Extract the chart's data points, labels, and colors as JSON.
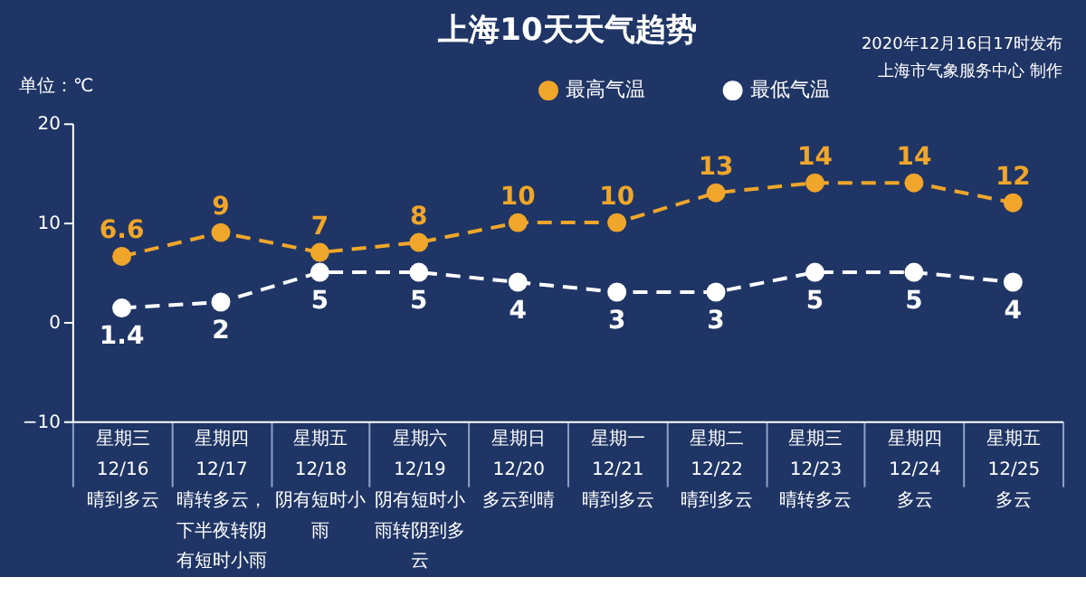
{
  "chart_data": {
    "type": "line",
    "title": "上海10天天气趋势",
    "ylabel": "单位：℃",
    "annotations": [
      "2020年12月16日17时发布",
      "上海市气象服务中心 制作"
    ],
    "categories": [
      "星期三\n12/16\n晴到多云",
      "星期四\n12/17\n晴转多云，下半夜转阴有短时小雨",
      "星期五\n12/18\n阴有短时小雨",
      "星期六\n12/19\n阴有短时小雨转阴到多云",
      "星期日\n12/20\n多云到晴",
      "星期一\n12/21\n晴到多云",
      "星期二\n12/22\n晴到多云",
      "星期三\n12/23\n晴转多云",
      "星期四\n12/24\n多云",
      "星期五\n12/25\n多云"
    ],
    "series": [
      {
        "name": "最高气温",
        "color": "#f0a62a",
        "values": [
          6.6,
          9,
          7,
          8,
          10,
          10,
          13,
          14,
          14,
          12
        ]
      },
      {
        "name": "最低气温",
        "color": "#ffffff",
        "values": [
          1.4,
          2,
          5,
          5,
          4,
          3,
          3,
          5,
          5,
          4
        ]
      }
    ],
    "ylim": [
      -10,
      20
    ],
    "yticks": [
      -10,
      0,
      10,
      20
    ],
    "grid": false,
    "legend": "top",
    "marker": "circle",
    "line_style": "dashed",
    "data_labels": true
  }
}
